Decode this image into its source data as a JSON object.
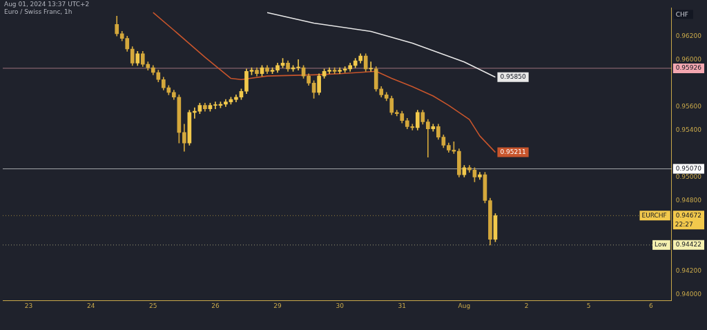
{
  "chart_data": {
    "type": "candlestick",
    "title": "Euro / Swiss Franc, 1h",
    "subtitle": "Aug 01, 2024 13:37 UTC+2",
    "ylabel": "CHF",
    "categories": [
      null,
      null,
      null,
      null,
      null,
      "23",
      null,
      null,
      null,
      null,
      null,
      null,
      null,
      null,
      null,
      null,
      null,
      "24",
      null,
      null,
      null,
      null,
      null,
      null,
      null,
      null,
      null,
      null,
      null,
      "25",
      null,
      null,
      null,
      null,
      null,
      null,
      null,
      null,
      null,
      null,
      null,
      "26",
      null,
      null,
      null,
      null,
      null,
      null,
      null,
      null,
      null,
      null,
      null,
      "29",
      null,
      null,
      null,
      null,
      null,
      null,
      null,
      null,
      null,
      null,
      null,
      "30",
      null,
      null,
      null,
      null,
      null,
      null,
      null,
      null,
      null,
      null,
      null,
      "31",
      null,
      null,
      null,
      null,
      null,
      null,
      null,
      null,
      null,
      null,
      null,
      "Aug",
      null,
      null,
      null,
      null,
      null,
      null,
      null,
      null,
      null,
      null,
      null,
      "2",
      null,
      null,
      null,
      null,
      null,
      null,
      null,
      null,
      null,
      null,
      null,
      "5",
      null,
      null,
      null,
      null,
      null,
      null,
      null,
      null,
      null,
      null,
      null,
      "6",
      null,
      null,
      null,
      null
    ],
    "ylim": [
      0.9395,
      0.9644
    ],
    "yticks": [
      {
        "value": 0.94,
        "label": "0.94000"
      },
      {
        "value": 0.942,
        "label": "0.94200"
      },
      {
        "value": 0.948,
        "label": "0.94800"
      },
      {
        "value": 0.95,
        "label": "0.95000"
      },
      {
        "value": 0.954,
        "label": "0.95400"
      },
      {
        "value": 0.956,
        "label": "0.95600"
      },
      {
        "value": 0.96,
        "label": "0.96000"
      },
      {
        "value": 0.962,
        "label": "0.96200"
      }
    ],
    "series": [
      {
        "colors": [
          null,
          null,
          null,
          null,
          null,
          null,
          null,
          null,
          null,
          null,
          null,
          null,
          null,
          null,
          null,
          null,
          null,
          null,
          null,
          null,
          null,
          null,
          "#d4a83c",
          "#d4a83c",
          "#d4a83c",
          "#d4a83c",
          "#f2c94c",
          "#d4a83c",
          "#d4a83c",
          "#d4a83c",
          "#d4a83c",
          "#d4a83c",
          "#d4a83c",
          "#d4a83c",
          "#d4a83c",
          "#d4a83c",
          "#f2c94c",
          "#f2c94c",
          "#f2c94c",
          "#d4a83c",
          "#f2c94c",
          "#f2c94c",
          "#f2c94c",
          "#f2c94c",
          "#f2c94c",
          "#f2c94c",
          "#f2c94c",
          "#f2c94c",
          "#f2c94c",
          "#d4a83c",
          "#f2c94c",
          "#d4a83c",
          "#f2c94c",
          "#f2c94c",
          "#f2c94c",
          "#d4a83c",
          "#f2c94c",
          "#f2c94c",
          "#d4a83c",
          "#d4a83c",
          "#d4a83c",
          "#f2c94c",
          "#f2c94c",
          "#f2c94c",
          "#d4a83c",
          "#f2c94c",
          "#f2c94c",
          "#f2c94c",
          "#f2c94c",
          "#f2c94c",
          "#d4a83c",
          "#f2c94c",
          "#d4a83c",
          "#d4a83c",
          "#d4a83c",
          "#d4a83c",
          "#d4a83c",
          "#d4a83c",
          "#d4a83c",
          "#d4a83c",
          "#f2c94c",
          "#d4a83c",
          "#d4a83c",
          "#f2c94c",
          "#d4a83c",
          "#d4a83c",
          "#d4a83c",
          "#d4a83c",
          "#d4a83c",
          "#f2c94c",
          "#d4a83c",
          "#d4a83c",
          "#f2c94c",
          "#d4a83c",
          "#d4a83c",
          "#f2c94c",
          null,
          null,
          null,
          null,
          null,
          null,
          null,
          null,
          null,
          null,
          null,
          null,
          null,
          null,
          null,
          null,
          null,
          null,
          null,
          null,
          null,
          null,
          null,
          null,
          null,
          null,
          null,
          null,
          null,
          null,
          null,
          null,
          null,
          null
        ],
        "ohlc": [
          null,
          null,
          null,
          null,
          null,
          null,
          null,
          null,
          null,
          null,
          null,
          null,
          null,
          null,
          null,
          null,
          null,
          null,
          null,
          null,
          null,
          null,
          [
            0.963,
            0.9637,
            0.962,
            0.9622
          ],
          [
            0.9622,
            0.9624,
            0.9616,
            0.9618
          ],
          [
            0.9618,
            0.962,
            0.9607,
            0.9609
          ],
          [
            0.9609,
            0.9611,
            0.9595,
            0.9597
          ],
          [
            0.9597,
            0.9607,
            0.9595,
            0.9605
          ],
          [
            0.9605,
            0.9607,
            0.9594,
            0.9596
          ],
          [
            0.9596,
            0.9598,
            0.9591,
            0.9593
          ],
          [
            0.9593,
            0.9595,
            0.9587,
            0.9589
          ],
          [
            0.9589,
            0.9591,
            0.9581,
            0.9583
          ],
          [
            0.9583,
            0.9585,
            0.9574,
            0.9576
          ],
          [
            0.9576,
            0.9578,
            0.957,
            0.9572
          ],
          [
            0.9572,
            0.9574,
            0.9566,
            0.9568
          ],
          [
            0.9568,
            0.957,
            0.9529,
            0.9538
          ],
          [
            0.9538,
            0.9545,
            0.9522,
            0.9529
          ],
          [
            0.9529,
            0.9557,
            0.9527,
            0.9555
          ],
          [
            0.9555,
            0.9559,
            0.955,
            0.9556
          ],
          [
            0.9556,
            0.9563,
            0.9554,
            0.9561
          ],
          [
            0.9561,
            0.9563,
            0.9556,
            0.9558
          ],
          [
            0.9558,
            0.9563,
            0.9556,
            0.9561
          ],
          [
            0.9561,
            0.9564,
            0.9558,
            0.9561
          ],
          [
            0.9561,
            0.9564,
            0.9559,
            0.9562
          ],
          [
            0.9562,
            0.9566,
            0.956,
            0.9564
          ],
          [
            0.9564,
            0.9568,
            0.9562,
            0.9566
          ],
          [
            0.9566,
            0.957,
            0.9564,
            0.9568
          ],
          [
            0.9568,
            0.9575,
            0.9566,
            0.9573
          ],
          [
            0.9573,
            0.9592,
            0.9571,
            0.959
          ],
          [
            0.959,
            0.9593,
            0.9587,
            0.9591
          ],
          [
            0.9591,
            0.9593,
            0.9586,
            0.9588
          ],
          [
            0.9588,
            0.9595,
            0.9586,
            0.9593
          ],
          [
            0.9593,
            0.9595,
            0.9588,
            0.959
          ],
          [
            0.959,
            0.9593,
            0.9588,
            0.9591
          ],
          [
            0.9591,
            0.9597,
            0.9589,
            0.9595
          ],
          [
            0.9595,
            0.9601,
            0.9593,
            0.9597
          ],
          [
            0.9597,
            0.9599,
            0.959,
            0.9592
          ],
          [
            0.9592,
            0.9595,
            0.959,
            0.9593
          ],
          [
            0.9593,
            0.96,
            0.9591,
            0.9593
          ],
          [
            0.9593,
            0.9595,
            0.9584,
            0.9586
          ],
          [
            0.9586,
            0.9588,
            0.9578,
            0.958
          ],
          [
            0.958,
            0.9582,
            0.9567,
            0.9572
          ],
          [
            0.9572,
            0.9588,
            0.957,
            0.9586
          ],
          [
            0.9586,
            0.9592,
            0.9584,
            0.959
          ],
          [
            0.959,
            0.9593,
            0.9588,
            0.9591
          ],
          [
            0.9591,
            0.9593,
            0.9588,
            0.959
          ],
          [
            0.959,
            0.9593,
            0.9588,
            0.9591
          ],
          [
            0.9591,
            0.9594,
            0.9589,
            0.9592
          ],
          [
            0.9592,
            0.9597,
            0.959,
            0.9595
          ],
          [
            0.9595,
            0.9601,
            0.9593,
            0.9599
          ],
          [
            0.9599,
            0.9605,
            0.9597,
            0.9603
          ],
          [
            0.9603,
            0.9605,
            0.959,
            0.9592
          ],
          [
            0.9592,
            0.9598,
            0.959,
            0.9592
          ],
          [
            0.9592,
            0.9594,
            0.9573,
            0.9575
          ],
          [
            0.9575,
            0.9577,
            0.9568,
            0.957
          ],
          [
            0.957,
            0.9572,
            0.9565,
            0.9567
          ],
          [
            0.9567,
            0.9569,
            0.9553,
            0.9555
          ],
          [
            0.9555,
            0.9557,
            0.9552,
            0.9554
          ],
          [
            0.9554,
            0.9556,
            0.9546,
            0.9548
          ],
          [
            0.9548,
            0.955,
            0.9541,
            0.9543
          ],
          [
            0.9543,
            0.9545,
            0.954,
            0.9542
          ],
          [
            0.9542,
            0.9557,
            0.954,
            0.9555
          ],
          [
            0.9555,
            0.9557,
            0.9545,
            0.9547
          ],
          [
            0.9547,
            0.9549,
            0.9517,
            0.9541
          ],
          [
            0.9541,
            0.9545,
            0.9539,
            0.9543
          ],
          [
            0.9543,
            0.9545,
            0.9532,
            0.9534
          ],
          [
            0.9534,
            0.9536,
            0.9525,
            0.9527
          ],
          [
            0.9527,
            0.9529,
            0.9521,
            0.9523
          ],
          [
            0.9523,
            0.953,
            0.952,
            0.9522
          ],
          [
            0.9522,
            0.9524,
            0.95,
            0.9502
          ],
          [
            0.9502,
            0.951,
            0.95,
            0.9508
          ],
          [
            0.9508,
            0.951,
            0.9504,
            0.9506
          ],
          [
            0.9506,
            0.9508,
            0.9496,
            0.95
          ],
          [
            0.95,
            0.9504,
            0.9498,
            0.9502
          ],
          [
            0.9502,
            0.9504,
            0.9478,
            0.948
          ],
          [
            0.948,
            0.9482,
            0.94422,
            0.9447
          ],
          [
            0.9447,
            0.9469,
            0.9445,
            0.94672
          ],
          null,
          null,
          null,
          null,
          null,
          null,
          null,
          null,
          null,
          null,
          null,
          null,
          null,
          null,
          null,
          null,
          null,
          null,
          null,
          null,
          null,
          null,
          null,
          null,
          null,
          null,
          null,
          null,
          null,
          null,
          null,
          null,
          null,
          null
        ]
      },
      {
        "type": "line",
        "color": "#c8552c",
        "values": [
          null,
          null,
          null,
          null,
          null,
          null,
          null,
          null,
          null,
          null,
          null,
          null,
          null,
          null,
          null,
          null,
          null,
          null,
          null,
          null,
          null,
          null,
          null,
          null,
          null,
          null,
          null,
          null,
          null,
          0.964,
          null,
          null,
          null,
          0.9625,
          null,
          null,
          null,
          null,
          null,
          0.9602,
          null,
          null,
          null,
          null,
          0.9584,
          null,
          0.9583,
          null,
          null,
          null,
          null,
          0.9586,
          null,
          null,
          null,
          null,
          null,
          null,
          null,
          null,
          0.9587,
          null,
          null,
          null,
          null,
          0.9588,
          null,
          null,
          null,
          null,
          null,
          null,
          0.959,
          null,
          null,
          0.9584,
          null,
          null,
          null,
          0.9577,
          null,
          null,
          null,
          0.9569,
          null,
          null,
          0.9561,
          null,
          null,
          null,
          0.9549,
          null,
          0.9535,
          null,
          null,
          0.95211,
          null,
          null,
          null,
          null,
          null,
          null,
          null,
          null,
          null,
          null,
          null,
          null,
          null,
          null,
          null,
          null,
          null,
          null,
          null,
          null,
          null,
          null,
          null,
          null,
          null,
          null,
          null,
          null,
          null,
          null,
          null,
          null,
          null,
          null
        ],
        "value_labels": [
          null,
          null,
          null,
          null,
          null,
          null,
          null,
          null,
          null,
          null,
          null,
          null,
          null,
          null,
          null,
          null,
          null,
          null,
          null,
          null,
          null,
          null,
          null,
          null,
          null,
          null,
          null,
          null,
          null,
          null,
          null,
          null,
          null,
          null,
          null,
          null,
          null,
          null,
          null,
          null,
          null,
          null,
          null,
          null,
          null,
          null,
          null,
          null,
          null,
          null,
          null,
          null,
          null,
          null,
          null,
          null,
          null,
          null,
          null,
          null,
          null,
          null,
          null,
          null,
          null,
          null,
          null,
          null,
          null,
          null,
          null,
          null,
          null,
          null,
          null,
          null,
          null,
          null,
          null,
          null,
          null,
          null,
          null,
          null,
          null,
          null,
          null,
          null,
          null,
          null,
          null,
          null,
          null,
          null,
          null,
          "0.95211",
          null,
          null,
          null,
          null,
          null,
          null,
          null,
          null,
          null,
          null,
          null,
          null,
          null,
          null,
          null,
          null,
          null,
          null,
          null,
          null,
          null,
          null,
          null,
          null,
          null,
          null,
          null,
          null,
          null,
          null,
          null,
          null,
          null,
          null
        ]
      },
      {
        "type": "line",
        "color": "#e8e8e8",
        "values": [
          null,
          null,
          null,
          null,
          null,
          null,
          null,
          null,
          null,
          null,
          null,
          null,
          null,
          null,
          null,
          null,
          null,
          null,
          null,
          null,
          null,
          null,
          null,
          null,
          null,
          null,
          null,
          null,
          null,
          null,
          null,
          null,
          null,
          null,
          null,
          null,
          null,
          null,
          null,
          null,
          null,
          null,
          null,
          null,
          null,
          null,
          null,
          null,
          null,
          null,
          null,
          0.964,
          null,
          null,
          null,
          null,
          null,
          null,
          null,
          null,
          0.9631,
          null,
          null,
          null,
          null,
          null,
          null,
          null,
          null,
          null,
          null,
          0.9624,
          null,
          null,
          null,
          null,
          null,
          null,
          null,
          0.9614,
          null,
          null,
          null,
          null,
          null,
          null,
          null,
          null,
          null,
          0.9598,
          null,
          null,
          null,
          null,
          null,
          0.9585,
          null,
          null,
          null,
          null,
          null,
          null,
          null,
          null,
          null,
          null,
          null,
          null,
          null,
          null,
          null,
          null,
          null,
          null,
          null,
          null,
          null,
          null,
          null,
          null,
          null,
          null,
          null,
          null,
          null,
          null,
          null,
          null,
          null,
          null
        ],
        "value_labels": [
          null,
          null,
          null,
          null,
          null,
          null,
          null,
          null,
          null,
          null,
          null,
          null,
          null,
          null,
          null,
          null,
          null,
          null,
          null,
          null,
          null,
          null,
          null,
          null,
          null,
          null,
          null,
          null,
          null,
          null,
          null,
          null,
          null,
          null,
          null,
          null,
          null,
          null,
          null,
          null,
          null,
          null,
          null,
          null,
          null,
          null,
          null,
          null,
          null,
          null,
          null,
          null,
          null,
          null,
          null,
          null,
          null,
          null,
          null,
          null,
          null,
          null,
          null,
          null,
          null,
          null,
          null,
          null,
          null,
          null,
          null,
          null,
          null,
          null,
          null,
          null,
          null,
          null,
          null,
          null,
          null,
          null,
          null,
          null,
          null,
          null,
          null,
          null,
          null,
          null,
          null,
          null,
          null,
          null,
          null,
          "0.95850",
          null,
          null,
          null,
          null,
          null,
          null,
          null,
          null,
          null,
          null,
          null,
          null,
          null,
          null,
          null,
          null,
          null,
          null,
          null,
          null,
          null,
          null,
          null,
          null,
          null,
          null,
          null,
          null,
          null,
          null,
          null,
          null,
          null,
          null
        ]
      }
    ],
    "ref_lines": [
      {
        "axis": "y",
        "value": 0.95926,
        "label": "0.95926",
        "color": "#f4a7b0",
        "line_style": "solid"
      },
      {
        "axis": "y",
        "value": 0.9507,
        "label": "0.95070",
        "color": "#ffffff",
        "line_style": "solid"
      },
      {
        "axis": "y",
        "value": 0.94672,
        "label": "0.94672",
        "color": "#f2c94c",
        "line_style": "dotted"
      },
      {
        "axis": "y",
        "value": 0.94422,
        "label": "0.94422",
        "color": "#f5f0b0",
        "line_style": "dotted"
      }
    ],
    "annotations": [
      {
        "text": "EURCHF",
        "y": 0.94672
      },
      "22:27",
      {
        "text": "Low",
        "y": 0.94422
      }
    ]
  }
}
